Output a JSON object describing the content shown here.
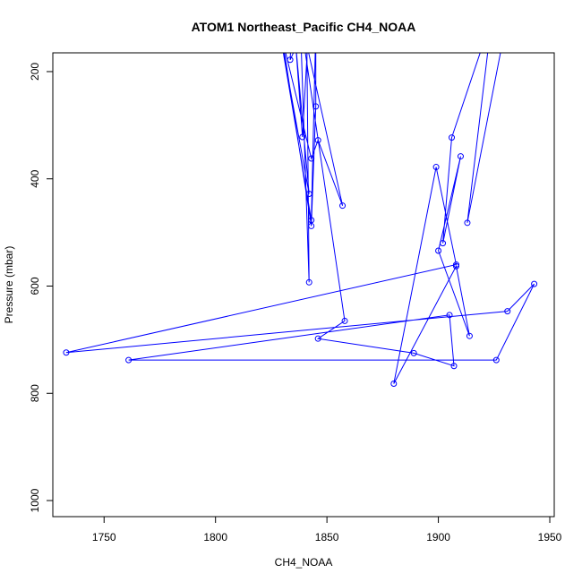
{
  "chart_data": {
    "type": "line",
    "title": "ATOM1 Northeast_Pacific CH4_NOAA",
    "xlabel": "CH4_NOAA",
    "ylabel": "Pressure (mbar)",
    "xlim": [
      1727,
      1952
    ],
    "ylim": [
      1030,
      165
    ],
    "y_reversed": true,
    "x_ticks": [
      1750,
      1800,
      1850,
      1900,
      1950
    ],
    "y_ticks": [
      200,
      400,
      600,
      800,
      1000
    ],
    "grid": false,
    "line_color": "#0000ff",
    "series": [
      {
        "marker": "open-circle",
        "points": [
          [
            1834,
            130
          ],
          [
            1833.5,
            178
          ],
          [
            1842,
            100
          ],
          [
            1839,
            322
          ],
          [
            1836,
            150
          ],
          [
            1842,
            428
          ],
          [
            1829,
            130
          ],
          [
            1843,
            477
          ],
          [
            1845,
            118
          ],
          [
            1845,
            265
          ],
          [
            1843,
            488
          ],
          [
            1830,
            140
          ],
          [
            1843,
            362
          ],
          [
            1846,
            328
          ],
          [
            1857,
            450
          ],
          [
            1841,
            150
          ],
          [
            1842,
            593
          ],
          [
            1838,
            100
          ],
          [
            1858,
            665
          ],
          [
            1846,
            698
          ],
          [
            1889,
            725
          ],
          [
            1907,
            749
          ],
          [
            1905,
            654
          ],
          [
            1761,
            738
          ],
          [
            1926,
            738
          ],
          [
            1943,
            596
          ],
          [
            1931,
            647
          ],
          [
            1733,
            724
          ],
          [
            1908,
            560
          ],
          [
            1899,
            378
          ],
          [
            1880,
            782
          ],
          [
            1908,
            563
          ],
          [
            1914,
            693
          ],
          [
            1900,
            534
          ],
          [
            1910,
            358
          ],
          [
            1902,
            520
          ],
          [
            1906,
            323
          ],
          [
            1924,
            100
          ],
          [
            1913,
            482
          ],
          [
            1930,
            120
          ]
        ]
      }
    ]
  }
}
